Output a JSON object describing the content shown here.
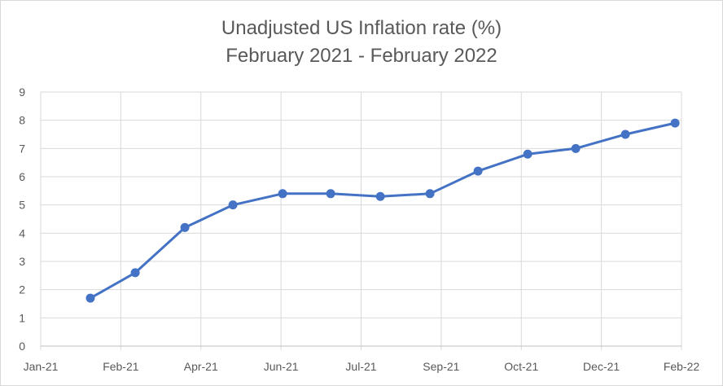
{
  "chart_data": {
    "type": "line",
    "title": "Unadjusted US Inflation rate (%)",
    "subtitle": "February 2021 - February 2022",
    "xlabel": "",
    "ylabel": "",
    "x_tick_labels": [
      "Jan-21",
      "Feb-21",
      "Apr-21",
      "Jun-21",
      "Jul-21",
      "Sep-21",
      "Oct-21",
      "Dec-21",
      "Feb-22"
    ],
    "x_ticks": [
      "2021-01-01",
      "2021-02-20",
      "2021-04-11",
      "2021-05-31",
      "2021-07-20",
      "2021-09-08",
      "2021-10-28",
      "2021-12-17",
      "2022-02-05"
    ],
    "xlim": [
      "2021-01-01",
      "2022-02-05"
    ],
    "y_ticks": [
      0,
      1,
      2,
      3,
      4,
      5,
      6,
      7,
      8,
      9
    ],
    "ylim": [
      0,
      9
    ],
    "grid": true,
    "color": "#4472c4",
    "series": [
      {
        "x": [
          "2021-02-01",
          "2021-03-01",
          "2021-04-01",
          "2021-05-01",
          "2021-06-01",
          "2021-07-01",
          "2021-08-01",
          "2021-09-01",
          "2021-10-01",
          "2021-11-01",
          "2021-12-01",
          "2022-01-01",
          "2022-02-01"
        ],
        "values": [
          1.7,
          2.6,
          4.2,
          5.0,
          5.4,
          5.4,
          5.3,
          5.4,
          6.2,
          6.8,
          7.0,
          7.5,
          7.9
        ]
      }
    ]
  }
}
